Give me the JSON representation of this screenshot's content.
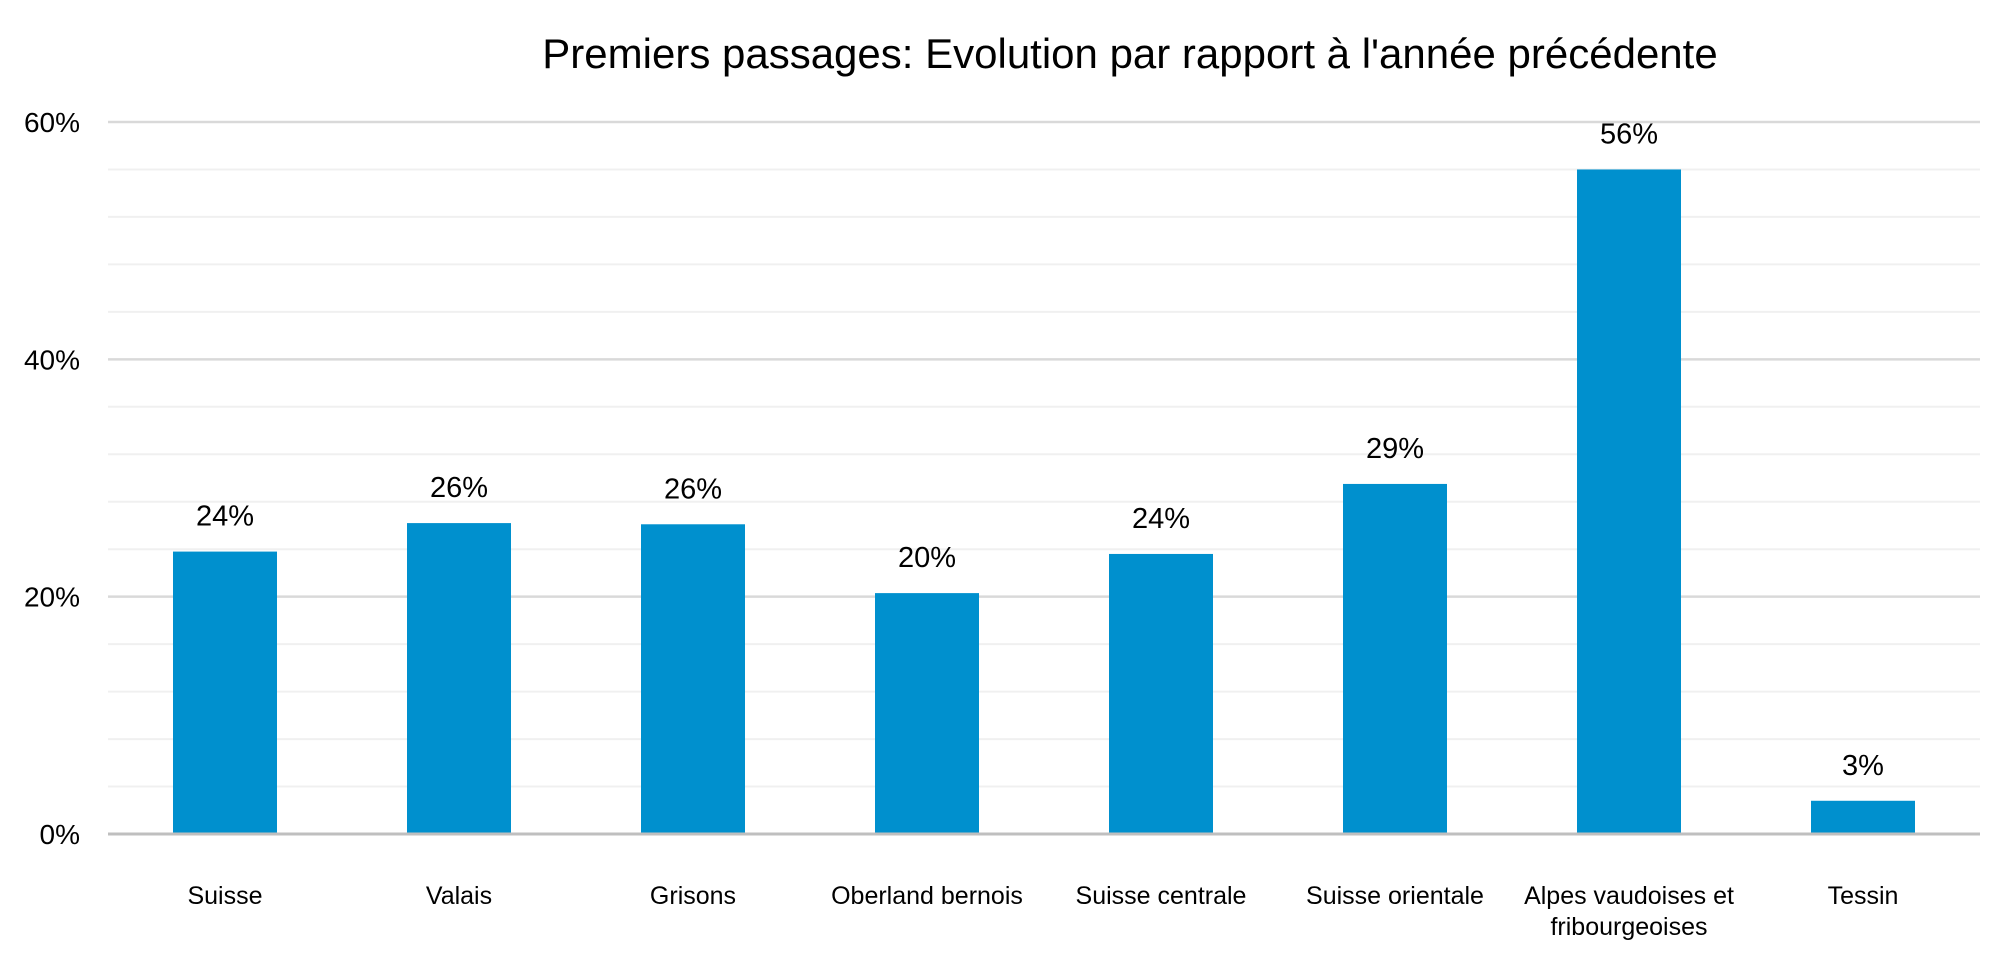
{
  "chart_data": {
    "type": "bar",
    "title": "Premiers passages: Evolution par rapport à l'année précédente",
    "xlabel": "",
    "ylabel": "",
    "categories": [
      "Suisse",
      "Valais",
      "Grisons",
      "Oberland bernois",
      "Suisse centrale",
      "Suisse orientale",
      "Alpes vaudoises et fribourgeoises",
      "Tessin"
    ],
    "category_label_lines": [
      [
        "Suisse"
      ],
      [
        "Valais"
      ],
      [
        "Grisons"
      ],
      [
        "Oberland bernois"
      ],
      [
        "Suisse centrale"
      ],
      [
        "Suisse orientale"
      ],
      [
        "Alpes vaudoises et",
        "fribourgeoises"
      ],
      [
        "Tessin"
      ]
    ],
    "values": [
      23.8,
      26.2,
      26.1,
      20.3,
      23.6,
      29.5,
      56.0,
      2.8
    ],
    "data_labels": [
      "24%",
      "26%",
      "26%",
      "20%",
      "24%",
      "29%",
      "56%",
      "3%"
    ],
    "ylim": [
      0,
      60
    ],
    "yticks": [
      0,
      20,
      40,
      60
    ],
    "ytick_labels": [
      "0%",
      "20%",
      "40%",
      "60%"
    ],
    "minor_gridlines_step": 4,
    "grid": true,
    "legend": "none",
    "colors": {
      "bar": "#0090CE",
      "major_grid": "#D9D9D9",
      "minor_grid": "#F0F0F0",
      "baseline": "#BFBFBF",
      "text": "#000000"
    }
  }
}
